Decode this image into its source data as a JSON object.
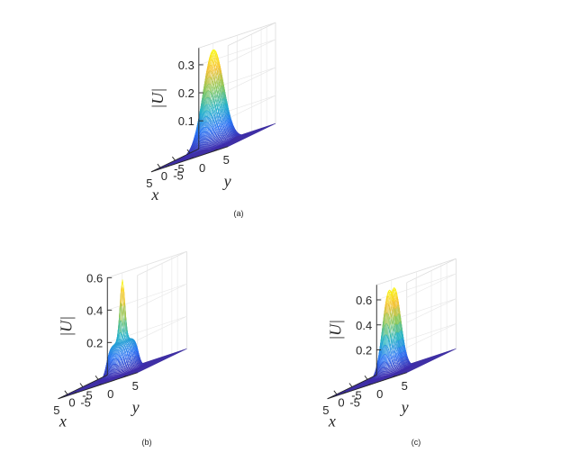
{
  "chart_data": [
    {
      "type": "surface",
      "caption": "(a)",
      "xlabel": "x",
      "ylabel": "y",
      "zlabel": "|U|",
      "xticks": [
        "-5",
        "0",
        "5"
      ],
      "yticks": [
        "-5",
        "0",
        "5"
      ],
      "zticks": [
        "0.1",
        "0.2",
        "0.3"
      ],
      "xlim": [
        -8,
        8
      ],
      "ylim": [
        -8,
        8
      ],
      "zlim": [
        0,
        0.36
      ],
      "shape": "single-peak",
      "peak": 0.35,
      "colormap": [
        "#3e26a8",
        "#2a72f5",
        "#23b3c9",
        "#86c85b",
        "#f6c033",
        "#f9fb0e"
      ]
    },
    {
      "type": "surface",
      "caption": "(b)",
      "xlabel": "x",
      "ylabel": "y",
      "zlabel": "|U|",
      "xticks": [
        "-5",
        "0",
        "5"
      ],
      "yticks": [
        "-5",
        "0",
        "5"
      ],
      "zticks": [
        "0.2",
        "0.4",
        "0.6"
      ],
      "xlim": [
        -8,
        8
      ],
      "ylim": [
        -8,
        8
      ],
      "zlim": [
        0,
        0.6
      ],
      "shape": "plateau-with-spike",
      "peak": 0.58,
      "colormap": [
        "#3e26a8",
        "#2a72f5",
        "#23b3c9",
        "#86c85b",
        "#f6c033",
        "#f9fb0e"
      ]
    },
    {
      "type": "surface",
      "caption": "(c)",
      "xlabel": "x",
      "ylabel": "y",
      "zlabel": "|U|",
      "xticks": [
        "-5",
        "0",
        "5"
      ],
      "yticks": [
        "-5",
        "0",
        "5"
      ],
      "zticks": [
        "0.2",
        "0.4",
        "0.6"
      ],
      "xlim": [
        -8,
        8
      ],
      "ylim": [
        -8,
        8
      ],
      "zlim": [
        0,
        0.72
      ],
      "shape": "double-peak",
      "peak": 0.69,
      "colormap": [
        "#3e26a8",
        "#2a72f5",
        "#23b3c9",
        "#86c85b",
        "#f6c033",
        "#f9fb0e"
      ]
    }
  ]
}
